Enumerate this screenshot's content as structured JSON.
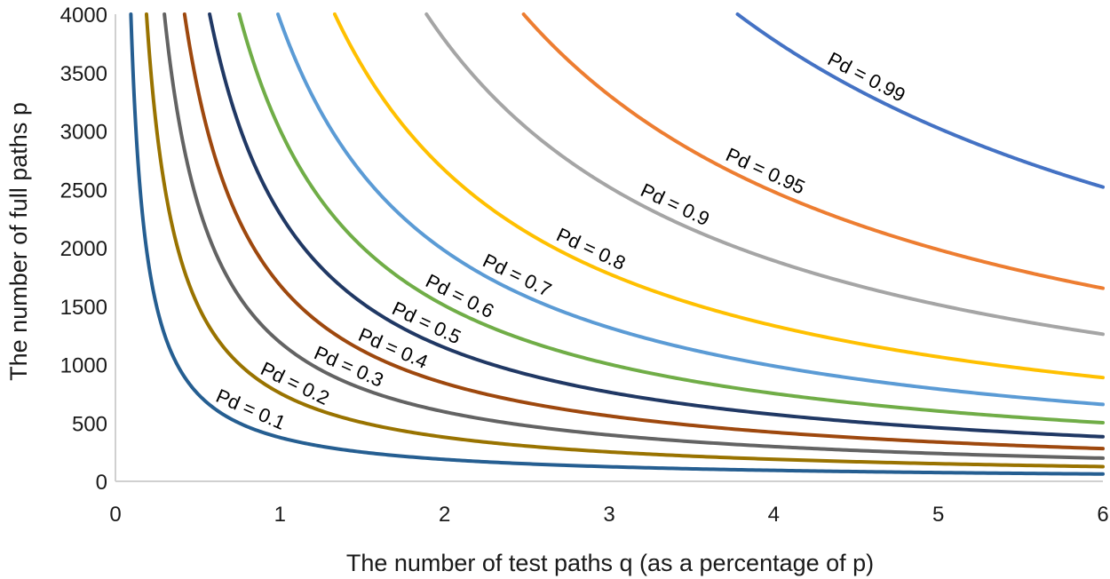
{
  "chart_data": {
    "type": "line",
    "title": "",
    "xlabel": "The number of test paths q (as a percentage of p)",
    "ylabel": "The number of full paths p",
    "xlim": [
      0,
      6
    ],
    "ylim": [
      0,
      4000
    ],
    "x_ticks": [
      "0",
      "1",
      "2",
      "3",
      "4",
      "5",
      "6"
    ],
    "y_ticks": [
      "0",
      "500",
      "1000",
      "1500",
      "2000",
      "2500",
      "3000",
      "3500",
      "4000"
    ],
    "grid": false,
    "legend": "none",
    "series": [
      {
        "name": "Pd = 0.1",
        "color": "#255e91",
        "k": 375,
        "label_x": 0.78,
        "label_dy": 8
      },
      {
        "name": "Pd = 0.2",
        "color": "#997300",
        "k": 755,
        "label_x": 1.05,
        "label_dy": 6
      },
      {
        "name": "Pd = 0.3",
        "color": "#636363",
        "k": 1190,
        "label_x": 1.38,
        "label_dy": 6
      },
      {
        "name": "Pd = 0.4",
        "color": "#9e480e",
        "k": 1680,
        "label_x": 1.65,
        "label_dy": 6
      },
      {
        "name": "Pd = 0.5",
        "color": "#203864",
        "k": 2290,
        "label_x": 1.85,
        "label_dy": 6
      },
      {
        "name": "Pd = 0.6",
        "color": "#70ad47",
        "k": 3010,
        "label_x": 2.05,
        "label_dy": 6
      },
      {
        "name": "Pd = 0.7",
        "color": "#5b9bd5",
        "k": 3950,
        "label_x": 2.4,
        "label_dy": 6
      },
      {
        "name": "Pd = 0.8",
        "color": "#ffc000",
        "k": 5330,
        "label_x": 2.85,
        "label_dy": 6
      },
      {
        "name": "Pd = 0.9",
        "color": "#a5a5a5",
        "k": 7560,
        "label_x": 3.36,
        "label_dy": 6
      },
      {
        "name": "Pd = 0.95",
        "color": "#ed7d31",
        "k": 9920,
        "label_x": 3.91,
        "label_dy": 6
      },
      {
        "name": "Pd = 0.99",
        "color": "#4472c4",
        "k": 15120,
        "label_x": 4.52,
        "label_dy": 6
      }
    ]
  }
}
